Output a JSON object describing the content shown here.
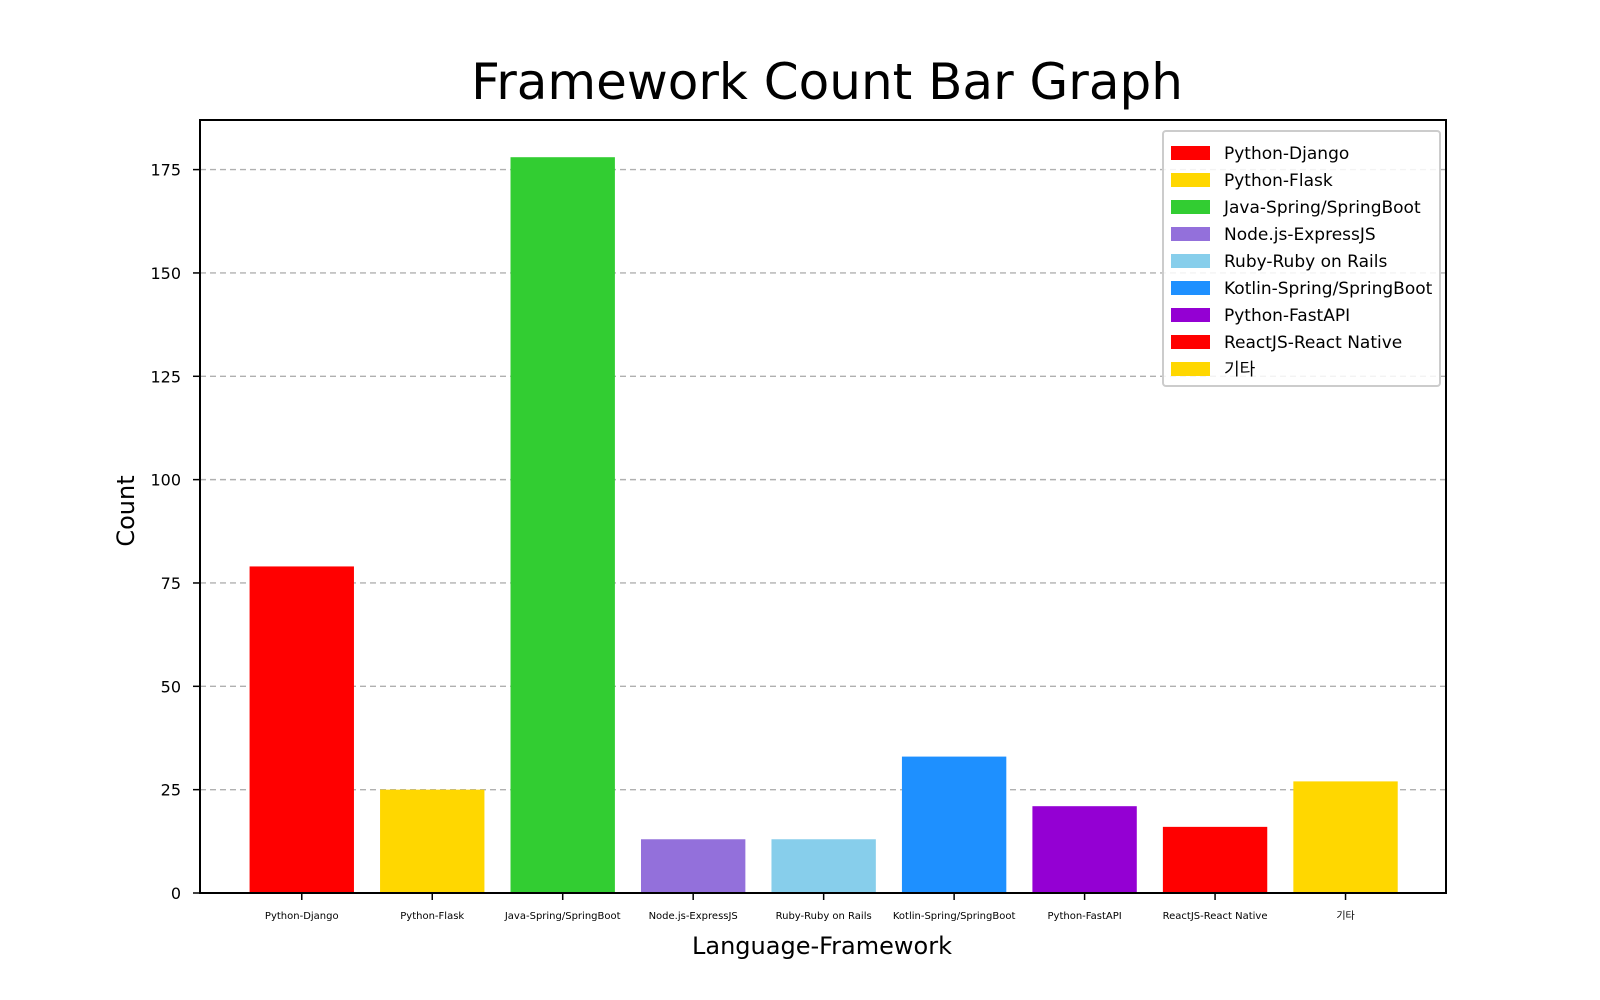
{
  "chart_data": {
    "type": "bar",
    "title": "Framework Count Bar Graph",
    "xlabel": "Language-Framework",
    "ylabel": "Count",
    "categories": [
      "Python-Django",
      "Python-Flask",
      "Java-Spring/SpringBoot",
      "Node.js-ExpressJS",
      "Ruby-Ruby on Rails",
      "Kotlin-Spring/SpringBoot",
      "Python-FastAPI",
      "ReactJS-React Native",
      "기타"
    ],
    "values": [
      79,
      25,
      178,
      13,
      13,
      33,
      21,
      16,
      27
    ],
    "colors": [
      "#ff0000",
      "#ffd700",
      "#32cd32",
      "#9370db",
      "#87ceeb",
      "#1e90ff",
      "#9400d3",
      "#ff0000",
      "#ffd700"
    ],
    "ylim": [
      0,
      187
    ],
    "yticks": [
      0,
      25,
      50,
      75,
      100,
      125,
      150,
      175
    ],
    "grid": "y-dashed",
    "legend_position": "top-right",
    "legend": [
      "Python-Django",
      "Python-Flask",
      "Java-Spring/SpringBoot",
      "Node.js-ExpressJS",
      "Ruby-Ruby on Rails",
      "Kotlin-Spring/SpringBoot",
      "Python-FastAPI",
      "ReactJS-React Native",
      "기타"
    ]
  }
}
